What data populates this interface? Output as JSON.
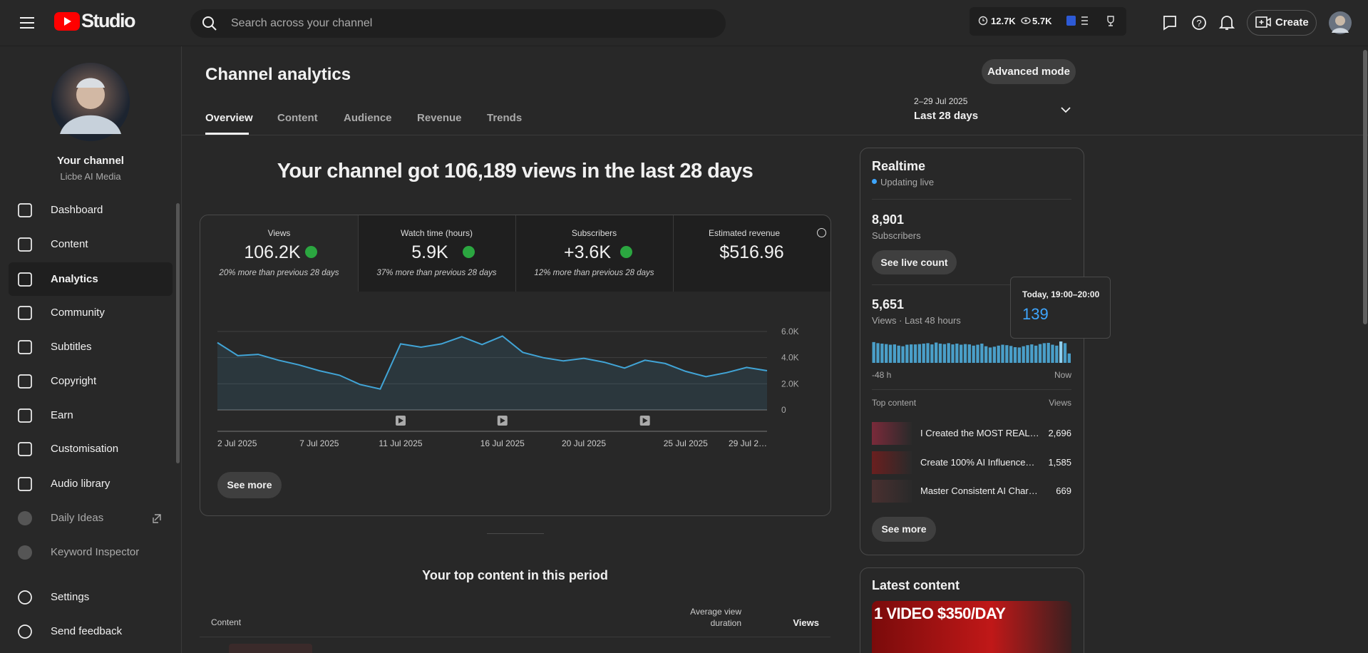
{
  "header": {
    "logo": "Studio",
    "search_placeholder": "Search across your channel",
    "stats": [
      "12.7K",
      "5.7K"
    ],
    "create": "Create"
  },
  "sidebar": {
    "channel_title": "Your channel",
    "channel_name": "Licbe AI Media",
    "nav": [
      "Dashboard",
      "Content",
      "Analytics",
      "Community",
      "Subtitles",
      "Copyright",
      "Earn",
      "Customisation",
      "Audio library",
      "Daily Ideas",
      "Keyword Inspector"
    ],
    "footer_nav": [
      "Settings",
      "Send feedback"
    ]
  },
  "page": {
    "title": "Channel analytics",
    "advanced_mode": "Advanced mode",
    "tabs": [
      "Overview",
      "Content",
      "Audience",
      "Revenue",
      "Trends"
    ],
    "date_range": "2–29 Jul 2025",
    "period": "Last 28 days",
    "headline": "Your channel got 106,189 views in the last 28 days",
    "see_more": "See more"
  },
  "metrics": [
    {
      "label": "Views",
      "value": "106.2K",
      "note": "20% more than previous 28 days"
    },
    {
      "label": "Watch time (hours)",
      "value": "5.9K",
      "note": "37% more than previous 28 days"
    },
    {
      "label": "Subscribers",
      "value": "+3.6K",
      "note": "12% more than previous 28 days"
    },
    {
      "label": "Estimated revenue",
      "value": "$516.96"
    }
  ],
  "views_chart": {
    "type": "line",
    "color": "#41a4d6",
    "categories": [
      "2 Jul 2025",
      null,
      null,
      null,
      null,
      "7 Jul 2025",
      null,
      null,
      null,
      "11 Jul 2025",
      null,
      null,
      null,
      null,
      "16 Jul 2025",
      null,
      null,
      null,
      "20 Jul 2025",
      null,
      null,
      null,
      null,
      "25 Jul 2025",
      null,
      null,
      null,
      "29 Jul 2…"
    ],
    "values": [
      5150,
      4150,
      4250,
      3800,
      3450,
      3000,
      2650,
      1950,
      1600,
      5050,
      4800,
      5050,
      5600,
      5000,
      5650,
      4400,
      4000,
      3750,
      3950,
      3650,
      3200,
      3800,
      3550,
      2950,
      2550,
      2850,
      3250,
      3000
    ],
    "ylim": [
      0,
      6000
    ],
    "yticks": [
      0,
      {
        "value": 2000,
        "label": "2.0K"
      },
      {
        "value": 4000,
        "label": "4.0K"
      },
      {
        "value": 6000,
        "label": "6.0K"
      }
    ],
    "grid": true
  },
  "realtime": {
    "title": "Realtime",
    "status": "Updating live",
    "subscribers": "8,901",
    "subscribers_label": "Subscribers",
    "live_count_button": "See live count",
    "views": "5,651",
    "views_label": "Views · Last 48 hours",
    "tooltip_time": "Today, 19:00–20:00",
    "bars": {
      "type": "bar",
      "color": "#4a9fc9",
      "x_start_label": "-48 h",
      "x_end_label": "Now",
      "values": [
        135,
        128,
        125,
        122,
        118,
        120,
        112,
        108,
        118,
        120,
        120,
        122,
        125,
        128,
        120,
        132,
        125,
        122,
        128,
        120,
        125,
        118,
        122,
        120,
        112,
        118,
        125,
        108,
        100,
        105,
        112,
        118,
        115,
        110,
        102,
        100,
        108,
        115,
        120,
        112,
        122,
        128,
        130,
        118,
        112,
        139,
        128,
        61
      ]
    },
    "top_content_label": "Top content",
    "views_header": "Views",
    "top_content": [
      {
        "title": "I Created the MOST REAL…",
        "views": "2,696"
      },
      {
        "title": "Create 100% AI Influence…",
        "views": "1,585"
      },
      {
        "title": "Master Consistent AI Char…",
        "views": "669"
      }
    ],
    "see_more": "See more"
  },
  "latest": {
    "title": "Latest content",
    "thumbnail_text": "1 VIDEO $350/DAY"
  },
  "top_section": {
    "title": "Your top content in this period",
    "columns": [
      "Content",
      "Average view duration",
      "Views"
    ]
  }
}
